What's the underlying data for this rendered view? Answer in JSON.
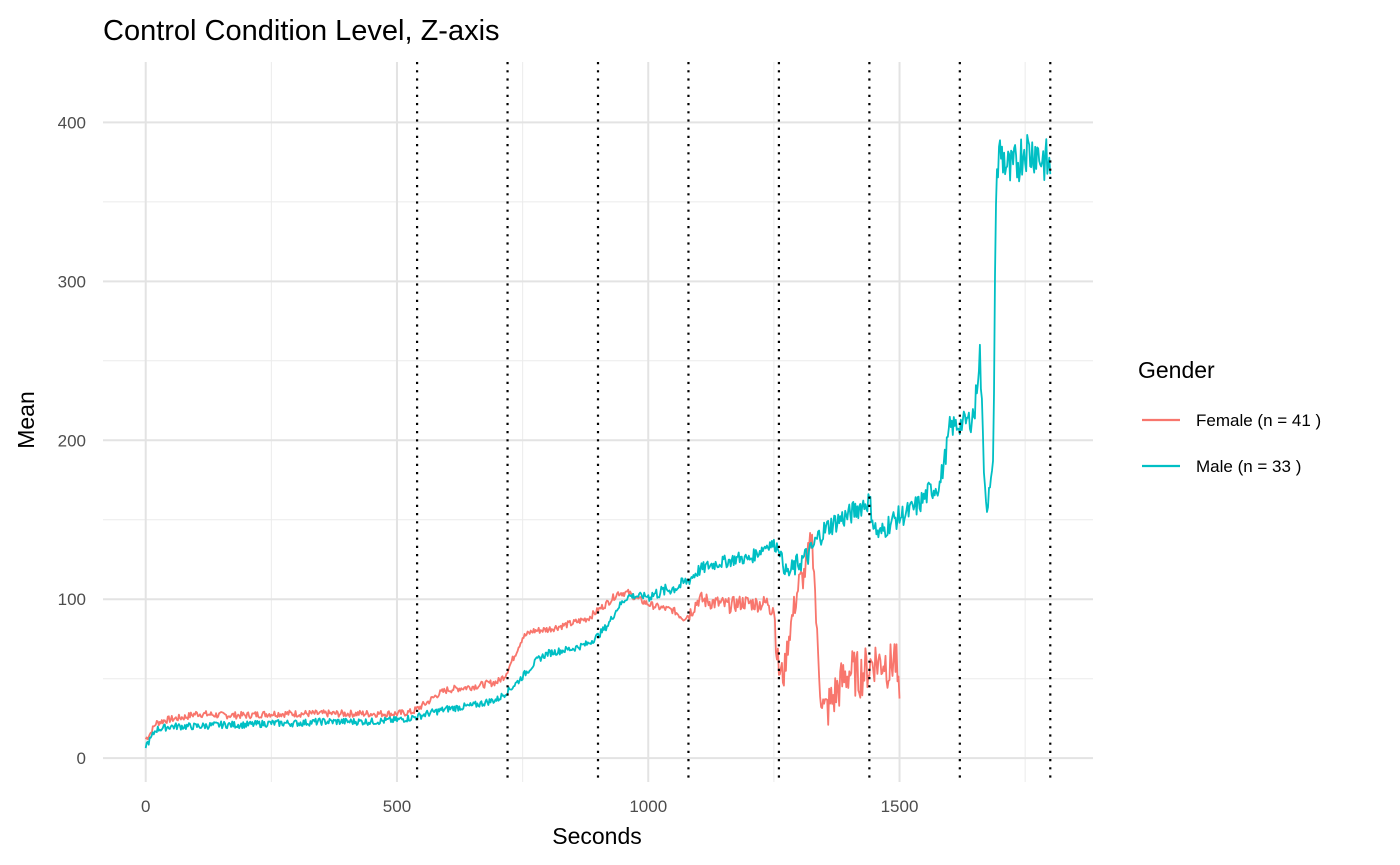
{
  "chart_data": {
    "type": "line",
    "title": "Control Condition Level, Z-axis",
    "xlabel": "Seconds",
    "ylabel": "Mean",
    "xlim": [
      -85,
      1885
    ],
    "ylim": [
      -15,
      438
    ],
    "x_ticks": [
      0,
      500,
      1000,
      1500
    ],
    "y_ticks": [
      0,
      100,
      200,
      300,
      400
    ],
    "x_tick_labels": [
      "0",
      "500",
      "1000",
      "1500"
    ],
    "y_tick_labels": [
      "0",
      "100",
      "200",
      "300",
      "400"
    ],
    "x_minor_ticks": [
      250,
      750,
      1250,
      1750
    ],
    "y_minor_ticks": [
      50,
      150,
      250,
      350
    ],
    "grid": true,
    "vlines": [
      540,
      720,
      900,
      1080,
      1260,
      1440,
      1620,
      1800
    ],
    "vline_style": "dotted",
    "legend": {
      "title": "Gender",
      "position": "right"
    },
    "series": [
      {
        "name": "Female (n = 41 )",
        "color": "#F8766D",
        "points": [
          [
            0,
            12
          ],
          [
            10,
            16
          ],
          [
            20,
            22
          ],
          [
            40,
            24
          ],
          [
            60,
            25
          ],
          [
            80,
            26
          ],
          [
            100,
            28
          ],
          [
            150,
            27
          ],
          [
            200,
            27
          ],
          [
            250,
            28
          ],
          [
            300,
            28
          ],
          [
            350,
            28
          ],
          [
            400,
            28
          ],
          [
            450,
            28
          ],
          [
            500,
            28
          ],
          [
            530,
            29
          ],
          [
            560,
            35
          ],
          [
            580,
            40
          ],
          [
            600,
            43
          ],
          [
            650,
            45
          ],
          [
            700,
            48
          ],
          [
            715,
            52
          ],
          [
            730,
            62
          ],
          [
            750,
            76
          ],
          [
            770,
            80
          ],
          [
            800,
            81
          ],
          [
            850,
            85
          ],
          [
            880,
            88
          ],
          [
            900,
            93
          ],
          [
            920,
            98
          ],
          [
            940,
            104
          ],
          [
            960,
            104
          ],
          [
            980,
            100
          ],
          [
            1000,
            97
          ],
          [
            1020,
            95
          ],
          [
            1050,
            93
          ],
          [
            1070,
            88
          ],
          [
            1080,
            90
          ],
          [
            1100,
            100
          ],
          [
            1130,
            98
          ],
          [
            1160,
            96
          ],
          [
            1190,
            98
          ],
          [
            1220,
            97
          ],
          [
            1240,
            98
          ],
          [
            1250,
            96
          ],
          [
            1255,
            70
          ],
          [
            1260,
            55
          ],
          [
            1270,
            52
          ],
          [
            1280,
            78
          ],
          [
            1300,
            110
          ],
          [
            1310,
            115
          ],
          [
            1320,
            130
          ],
          [
            1325,
            140
          ],
          [
            1330,
            120
          ],
          [
            1335,
            80
          ],
          [
            1340,
            55
          ],
          [
            1345,
            40
          ],
          [
            1350,
            28
          ],
          [
            1360,
            33
          ],
          [
            1380,
            45
          ],
          [
            1400,
            55
          ],
          [
            1420,
            52
          ],
          [
            1440,
            58
          ],
          [
            1450,
            62
          ],
          [
            1460,
            60
          ],
          [
            1470,
            62
          ],
          [
            1480,
            56
          ],
          [
            1490,
            65
          ],
          [
            1495,
            55
          ],
          [
            1500,
            25
          ]
        ]
      },
      {
        "name": "Male (n = 33 )",
        "color": "#00BFC4",
        "points": [
          [
            0,
            8
          ],
          [
            10,
            12
          ],
          [
            20,
            18
          ],
          [
            50,
            20
          ],
          [
            100,
            20
          ],
          [
            150,
            21
          ],
          [
            200,
            21
          ],
          [
            250,
            22
          ],
          [
            300,
            22
          ],
          [
            350,
            23
          ],
          [
            400,
            23
          ],
          [
            450,
            23
          ],
          [
            500,
            24
          ],
          [
            540,
            26
          ],
          [
            560,
            28
          ],
          [
            600,
            31
          ],
          [
            650,
            33
          ],
          [
            700,
            37
          ],
          [
            720,
            42
          ],
          [
            740,
            48
          ],
          [
            760,
            55
          ],
          [
            780,
            62
          ],
          [
            800,
            66
          ],
          [
            850,
            69
          ],
          [
            880,
            72
          ],
          [
            900,
            77
          ],
          [
            920,
            84
          ],
          [
            940,
            95
          ],
          [
            960,
            102
          ],
          [
            980,
            102
          ],
          [
            1000,
            102
          ],
          [
            1020,
            104
          ],
          [
            1040,
            106
          ],
          [
            1060,
            108
          ],
          [
            1080,
            112
          ],
          [
            1100,
            118
          ],
          [
            1120,
            121
          ],
          [
            1140,
            123
          ],
          [
            1160,
            124
          ],
          [
            1180,
            126
          ],
          [
            1200,
            125
          ],
          [
            1220,
            130
          ],
          [
            1240,
            135
          ],
          [
            1260,
            133
          ],
          [
            1270,
            120
          ],
          [
            1280,
            116
          ],
          [
            1300,
            123
          ],
          [
            1320,
            128
          ],
          [
            1340,
            140
          ],
          [
            1360,
            146
          ],
          [
            1380,
            150
          ],
          [
            1400,
            153
          ],
          [
            1420,
            158
          ],
          [
            1440,
            162
          ],
          [
            1450,
            145
          ],
          [
            1460,
            140
          ],
          [
            1480,
            148
          ],
          [
            1500,
            152
          ],
          [
            1520,
            155
          ],
          [
            1540,
            160
          ],
          [
            1560,
            168
          ],
          [
            1580,
            172
          ],
          [
            1590,
            188
          ],
          [
            1600,
            208
          ],
          [
            1620,
            210
          ],
          [
            1640,
            213
          ],
          [
            1650,
            218
          ],
          [
            1655,
            240
          ],
          [
            1660,
            255
          ],
          [
            1665,
            210
          ],
          [
            1670,
            172
          ],
          [
            1675,
            160
          ],
          [
            1680,
            168
          ],
          [
            1685,
            175
          ],
          [
            1688,
            230
          ],
          [
            1692,
            362
          ],
          [
            1700,
            382
          ],
          [
            1710,
            375
          ],
          [
            1720,
            368
          ],
          [
            1730,
            372
          ],
          [
            1740,
            378
          ],
          [
            1750,
            385
          ],
          [
            1760,
            380
          ],
          [
            1770,
            383
          ],
          [
            1780,
            378
          ],
          [
            1790,
            376
          ],
          [
            1800,
            370
          ]
        ]
      }
    ]
  }
}
